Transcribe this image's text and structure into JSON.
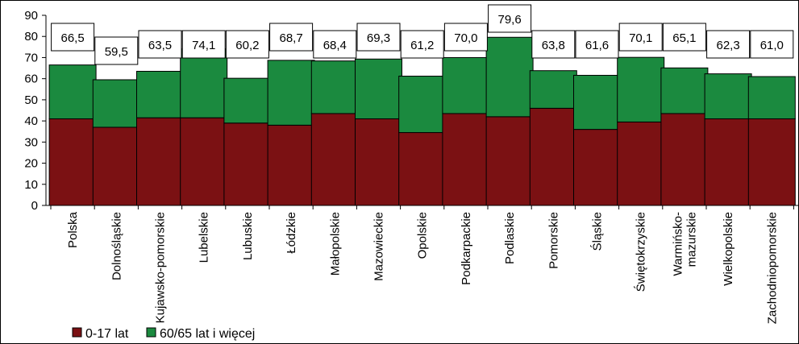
{
  "chart_data": {
    "type": "bar",
    "stacked": true,
    "categories": [
      "Polska",
      "Dolnośląskie",
      "Kujawsko-pomorskie",
      "Lubelskie",
      "Lubuskie",
      "Łódzkie",
      "Małopolskie",
      "Mazowieckie",
      "Opolskie",
      "Podkarpackie",
      "Podlaskie",
      "Pomorskie",
      "Śląskie",
      "Świętokrzyskie",
      "Warmińsko-mazurskie",
      "Wielkopolskie",
      "Zachodniopomorskie"
    ],
    "category_lines": [
      [
        "Polska"
      ],
      [
        "Dolnośląskie"
      ],
      [
        "Kujawsko-pomorskie"
      ],
      [
        "Lubelskie"
      ],
      [
        "Lubuskie"
      ],
      [
        "Łódzkie"
      ],
      [
        "Małopolskie"
      ],
      [
        "Mazowieckie"
      ],
      [
        "Opolskie"
      ],
      [
        "Podkarpackie"
      ],
      [
        "Podlaskie"
      ],
      [
        "Pomorskie"
      ],
      [
        "Śląskie"
      ],
      [
        "Świętokrzyskie"
      ],
      [
        "Warmińsko-",
        "mazurskie"
      ],
      [
        "Wielkopolskie"
      ],
      [
        "Zachodniopomorskie"
      ]
    ],
    "series": [
      {
        "name": "0-17 lat",
        "color": "#7b1113",
        "values": [
          41.0,
          37.0,
          41.5,
          41.5,
          39.0,
          38.0,
          43.5,
          41.0,
          34.5,
          43.5,
          42.0,
          46.0,
          36.0,
          39.5,
          43.5,
          41.0,
          41.0
        ]
      },
      {
        "name": "60/65 lat i więcej",
        "color": "#1b8a3f",
        "values": [
          25.5,
          22.5,
          22.0,
          32.6,
          21.2,
          30.7,
          24.9,
          28.3,
          26.7,
          26.5,
          37.6,
          17.8,
          25.6,
          30.6,
          21.6,
          21.3,
          20.0
        ]
      }
    ],
    "totals_labels": [
      "66,5",
      "59,5",
      "63,5",
      "74,1",
      "60,2",
      "68,7",
      "68,4",
      "69,3",
      "61,2",
      "70,0",
      "79,6",
      "63,8",
      "61,6",
      "70,1",
      "65,1",
      "62,3",
      "61,0"
    ],
    "totals": [
      66.5,
      59.5,
      63.5,
      74.1,
      60.2,
      68.7,
      68.4,
      69.3,
      61.2,
      70.0,
      79.6,
      63.8,
      61.6,
      70.1,
      65.1,
      62.3,
      61.0
    ],
    "ylim": [
      0,
      90
    ],
    "yticks": [
      0,
      10,
      20,
      30,
      40,
      50,
      60,
      70,
      80,
      90
    ],
    "title": "",
    "xlabel": "",
    "ylabel": "",
    "grid": false,
    "legend": "bottom-left"
  }
}
